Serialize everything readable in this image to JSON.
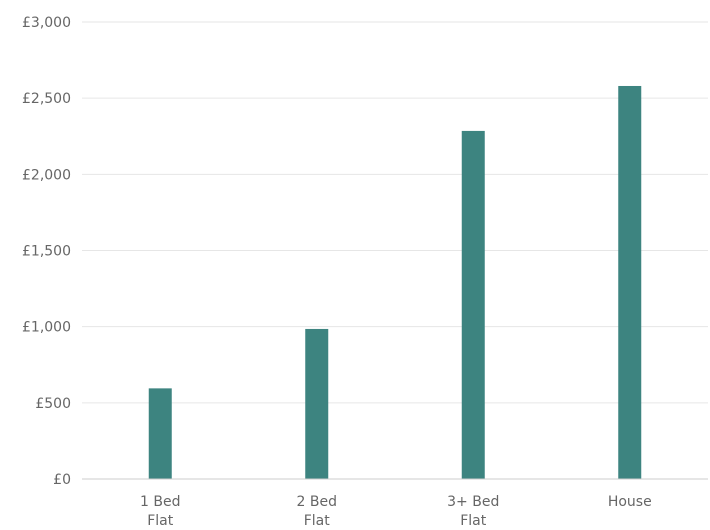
{
  "chart_data": {
    "type": "bar",
    "categories": [
      [
        "1 Bed",
        "Flat"
      ],
      [
        "2 Bed",
        "Flat"
      ],
      [
        "3+ Bed",
        "Flat"
      ],
      [
        "House"
      ]
    ],
    "values": [
      595,
      985,
      2285,
      2580
    ],
    "y_ticks": [
      0,
      500,
      1000,
      1500,
      2000,
      2500,
      3000
    ],
    "y_tick_labels": [
      "£0",
      "£500",
      "£1,000",
      "£1,500",
      "£2,000",
      "£2,500",
      "£3,000"
    ],
    "ylim": [
      0,
      3000
    ],
    "title": "",
    "xlabel": "",
    "ylabel": "",
    "grid": true,
    "bar_color": "#3d8480"
  }
}
